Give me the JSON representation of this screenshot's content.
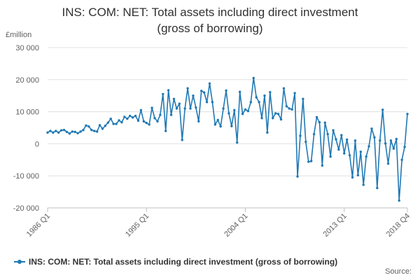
{
  "chart_data": {
    "type": "line",
    "title_line1": "INS: COM: NET: Total assets including direct investment",
    "title_line2": "(gross of borrowing)",
    "ylabel": "£million",
    "ylim": [
      -20000,
      30000
    ],
    "yticks": [
      -20000,
      -10000,
      0,
      10000,
      20000,
      30000
    ],
    "ytick_labels": [
      "-20 000",
      "-10 000",
      "0",
      "10 000",
      "20 000",
      "30 000"
    ],
    "xtick_labels": [
      "1986 Q1",
      "1995 Q1",
      "2004 Q1",
      "2013 Q1",
      "2018 Q4"
    ],
    "xtick_index": [
      0,
      36,
      72,
      108,
      131
    ],
    "grid": true,
    "legend_position": "bottom-left",
    "color": "#2079b4",
    "series": [
      {
        "name": "INS: COM: NET: Total assets including direct investment (gross of borrowing)",
        "values": [
          3500,
          4000,
          3500,
          4000,
          3500,
          4200,
          4300,
          3700,
          3200,
          3800,
          3700,
          3300,
          3800,
          4300,
          5700,
          5400,
          4300,
          4000,
          3800,
          5800,
          4700,
          5600,
          6600,
          7800,
          6200,
          6200,
          7300,
          6700,
          8400,
          7800,
          8700,
          8200,
          8700,
          7200,
          10500,
          7000,
          6500,
          6000,
          11200,
          8000,
          7000,
          9000,
          15500,
          4000,
          16700,
          9000,
          14000,
          11000,
          12500,
          1200,
          11000,
          17300,
          11000,
          15000,
          11300,
          7000,
          16500,
          16000,
          13000,
          18800,
          13000,
          6000,
          7400,
          5400,
          11000,
          16600,
          9500,
          5500,
          10500,
          400,
          16200,
          9300,
          10700,
          10200,
          13000,
          20500,
          14500,
          13000,
          8000,
          15000,
          3500,
          16100,
          8000,
          9500,
          9300,
          7600,
          17300,
          11700,
          11000,
          10700,
          15800,
          -10200,
          2500,
          14000,
          600,
          -5600,
          -5400,
          3000,
          8300,
          6700,
          -6800,
          6600,
          3000,
          -4000,
          4200,
          1400,
          -1800,
          2700,
          -3000,
          1300,
          -3600,
          -10500,
          1000,
          -9800,
          -2500,
          -12800,
          -4000,
          -800,
          4700,
          2000,
          -13800,
          1000,
          10600,
          100,
          -6200,
          1000,
          -1500,
          1500,
          -17700,
          -5000,
          -1000,
          9300
        ]
      }
    ],
    "legend_label": "INS: COM: NET: Total assets including direct investment (gross of borrowing)",
    "source_label": "Source:"
  }
}
